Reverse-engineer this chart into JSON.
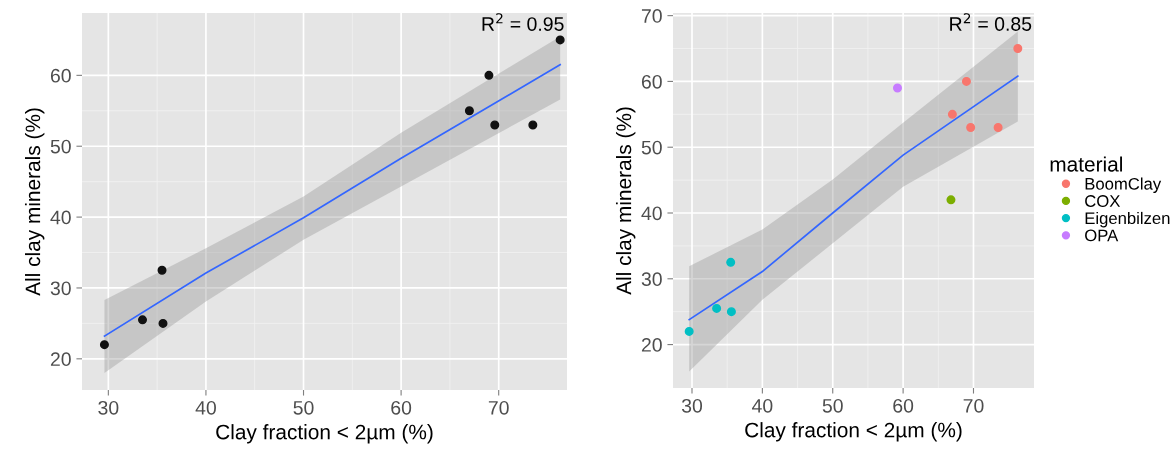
{
  "chart_data": [
    {
      "type": "scatter",
      "xlabel": "Clay fraction < 2µm (%)",
      "ylabel": "All clay minerals (%)",
      "annotations": [
        "R$^{2}$ = 0.95"
      ],
      "xlim": [
        27.3,
        77.0
      ],
      "ylim": [
        15.6,
        68.8
      ],
      "xticks": [
        30,
        40,
        50,
        60,
        70
      ],
      "yticks": [
        20,
        30,
        40,
        50,
        60
      ],
      "grid": true,
      "legend": false,
      "marker": "circle",
      "series": [
        {
          "color": "#111111",
          "x": [
            29.6,
            33.5,
            35.5,
            35.6,
            67,
            69,
            69.6,
            73.5,
            76.3
          ],
          "values": [
            22,
            25.5,
            32.5,
            25,
            55,
            60,
            53,
            53,
            65
          ]
        },
        {
          "type": "line",
          "marker": "none",
          "color": "#3366ff",
          "x": [
            29.6,
            40,
            50,
            60,
            76.3
          ],
          "values": [
            23.2,
            32.1,
            39.9,
            48.3,
            61.5
          ],
          "lower": [
            18.0,
            28.1,
            36.8,
            44.3,
            56.6
          ],
          "upper": [
            28.3,
            35.6,
            42.9,
            51.9,
            65.5
          ]
        }
      ]
    },
    {
      "type": "scatter",
      "xlabel": "Clay fraction < 2µm (%)",
      "ylabel": "All clay minerals (%)",
      "annotations": [
        "R$^{2}$ = 0.85"
      ],
      "legend_title": "material",
      "xlim": [
        27.3,
        78.6
      ],
      "ylim": [
        13.4,
        70.4
      ],
      "xticks": [
        30,
        40,
        50,
        60,
        70
      ],
      "yticks": [
        20,
        30,
        40,
        50,
        60,
        70
      ],
      "grid": true,
      "legend": "right",
      "marker": "circle",
      "series": [
        {
          "name": "BoomClay",
          "color": "#f8766d",
          "x": [
            67,
            69,
            69.6,
            73.5,
            76.3
          ],
          "values": [
            55,
            60,
            53,
            53,
            65
          ]
        },
        {
          "name": "COX",
          "color": "#7cae00",
          "x": [
            66.8
          ],
          "values": [
            42
          ]
        },
        {
          "name": "Eigenbilzen",
          "color": "#00bfc4",
          "x": [
            29.6,
            33.5,
            35.5,
            35.6
          ],
          "values": [
            22,
            25.5,
            32.5,
            25
          ]
        },
        {
          "name": "OPA",
          "color": "#c77cff",
          "x": [
            59.2
          ],
          "values": [
            59
          ]
        },
        {
          "type": "line",
          "marker": "none",
          "color": "#3366ff",
          "x": [
            29.6,
            40,
            50,
            60,
            76.3
          ],
          "values": [
            23.8,
            31.1,
            40.0,
            48.8,
            60.8
          ],
          "lower": [
            15.9,
            26.8,
            35.4,
            44.0,
            53.9
          ],
          "upper": [
            31.9,
            37.5,
            45.1,
            53.7,
            67.6
          ]
        }
      ]
    }
  ]
}
